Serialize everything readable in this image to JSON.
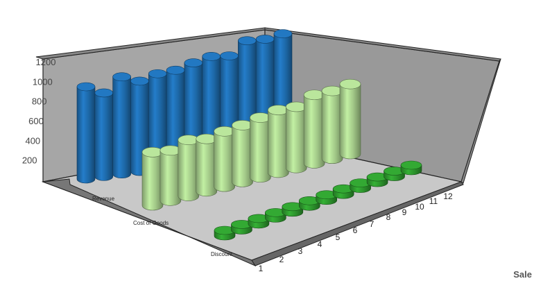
{
  "chart_data": {
    "type": "bar",
    "style": "3d-cylinder",
    "title": "Sale",
    "categories": [
      "1",
      "2",
      "3",
      "4",
      "5",
      "6",
      "7",
      "8",
      "9",
      "10",
      "11",
      "12"
    ],
    "series": [
      {
        "name": "Revenue",
        "color": "#1f6db0",
        "values": [
          950,
          860,
          1000,
          930,
          980,
          990,
          1040,
          1080,
          1060,
          1190,
          1180,
          1210
        ]
      },
      {
        "name": "Cost of Goods",
        "color": "#a9d18e",
        "values": [
          730,
          690,
          770,
          720,
          760,
          780,
          820,
          860,
          840,
          940,
          930,
          960
        ]
      },
      {
        "name": "Discount",
        "color": "#2e9a2e",
        "values": [
          30,
          30,
          30,
          30,
          30,
          30,
          30,
          30,
          30,
          30,
          30,
          30
        ]
      }
    ],
    "y_ticks": [
      "200",
      "400",
      "600",
      "800",
      "1000",
      "1200"
    ],
    "ylim": [
      0,
      1200
    ],
    "grid": false,
    "legend": "none"
  }
}
